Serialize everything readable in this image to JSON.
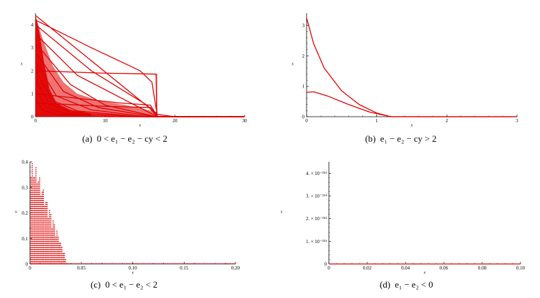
{
  "captions": [
    {
      "label": "(a)",
      "condition": "0 < e₁ − e₂ − cy < 2"
    },
    {
      "label": "(b)",
      "condition": "e₁ − e₂ − cy > 2"
    },
    {
      "label": "(c)",
      "condition": "0 < e₁ − e₂ < 2"
    },
    {
      "label": "(d)",
      "condition": "e₁ − e₂ < 0"
    }
  ],
  "chart_data": [
    {
      "type": "line",
      "panel": "a",
      "xlabel": "x",
      "ylabel": "x",
      "xlim": [
        0,
        30
      ],
      "ylim": [
        0,
        4.5
      ],
      "xticks": [
        0,
        10,
        20,
        30
      ],
      "yticks": [
        0,
        1,
        2,
        3,
        4
      ],
      "color": "#e00000",
      "series": [
        {
          "x": [
            0,
            17.5,
            20,
            30
          ],
          "y": [
            4.4,
            0.1,
            0,
            0
          ]
        },
        {
          "x": [
            0,
            9,
            17.3,
            17.4,
            20,
            30
          ],
          "y": [
            2.0,
            1.9,
            1.85,
            0,
            0,
            0
          ]
        },
        {
          "x": [
            0,
            8,
            15,
            16.7,
            17.5,
            30
          ],
          "y": [
            4.2,
            3.0,
            2.0,
            1.5,
            0,
            0
          ]
        },
        {
          "x": [
            0,
            8,
            16,
            17.5,
            30
          ],
          "y": [
            4.0,
            2.0,
            0.5,
            0,
            0
          ]
        },
        {
          "x": [
            0,
            6,
            13,
            17.5,
            30
          ],
          "y": [
            3.6,
            1.8,
            0.7,
            0,
            0
          ]
        },
        {
          "x": [
            0,
            5,
            10,
            17.3,
            30
          ],
          "y": [
            3.2,
            1.4,
            0.5,
            0,
            0
          ]
        },
        {
          "x": [
            0,
            4,
            9,
            17,
            30
          ],
          "y": [
            2.8,
            1.1,
            0.4,
            0,
            0
          ]
        },
        {
          "x": [
            0,
            3,
            8,
            16,
            30
          ],
          "y": [
            2.4,
            0.9,
            0.3,
            0,
            0
          ]
        },
        {
          "x": [
            0,
            2.5,
            6,
            15,
            30
          ],
          "y": [
            2.0,
            0.7,
            0.25,
            0,
            0
          ]
        },
        {
          "x": [
            0,
            2,
            5,
            14,
            30
          ],
          "y": [
            1.6,
            0.55,
            0.2,
            0,
            0
          ]
        },
        {
          "x": [
            0,
            1.5,
            4,
            12,
            30
          ],
          "y": [
            1.2,
            0.4,
            0.15,
            0,
            0
          ]
        },
        {
          "x": [
            0,
            1,
            3,
            10,
            30
          ],
          "y": [
            0.8,
            0.3,
            0.1,
            0,
            0
          ]
        },
        {
          "x": [
            0,
            12,
            16.5,
            17.5,
            30
          ],
          "y": [
            1.0,
            0.6,
            0.5,
            0,
            0
          ]
        },
        {
          "x": [
            0,
            10,
            16.5,
            17.5,
            30
          ],
          "y": [
            0.6,
            0.45,
            0.4,
            0,
            0
          ]
        }
      ]
    },
    {
      "type": "line",
      "panel": "b",
      "xlabel": "x",
      "ylabel": "x",
      "xlim": [
        0,
        3
      ],
      "ylim": [
        0,
        3.4
      ],
      "xticks": [
        0,
        1,
        2,
        3
      ],
      "yticks": [
        0,
        1,
        2,
        3
      ],
      "color": "#e00000",
      "series": [
        {
          "x": [
            0,
            0.1,
            0.25,
            0.5,
            0.75,
            1.0,
            1.2,
            3.0
          ],
          "y": [
            3.25,
            2.4,
            1.6,
            0.85,
            0.4,
            0.12,
            0,
            0
          ]
        },
        {
          "x": [
            0,
            0.1,
            0.3,
            0.6,
            0.9,
            1.2,
            3.0
          ],
          "y": [
            0.8,
            0.82,
            0.68,
            0.4,
            0.15,
            0,
            0
          ]
        }
      ]
    },
    {
      "type": "scatter",
      "panel": "c",
      "xlabel": "x",
      "ylabel": "x",
      "xlim": [
        0,
        0.2
      ],
      "ylim": [
        0,
        0.4
      ],
      "xticks": [
        0,
        0.05,
        0.1,
        0.15,
        0.2
      ],
      "ytick_values": [
        0,
        0.1,
        0.2,
        0.3,
        0.4
      ],
      "ytick_labels": [
        "0",
        "0.1",
        "0.2",
        "0.3",
        "0.4"
      ],
      "xtick_labels": [
        "0",
        "0.05",
        "0.10",
        "0.15",
        "0.20"
      ],
      "color": "#e00000",
      "envelope": {
        "x": [
          0,
          0.006,
          0.012,
          0.02,
          0.03,
          0.036,
          0.2
        ],
        "y": [
          0.4,
          0.38,
          0.3,
          0.2,
          0.08,
          0,
          0
        ]
      }
    },
    {
      "type": "line",
      "panel": "d",
      "xlabel": "x",
      "ylabel": "x",
      "xlim": [
        0,
        0.1
      ],
      "ylim": [
        0,
        4.5
      ],
      "xticks": [
        0,
        0.02,
        0.04,
        0.06,
        0.08,
        0.1
      ],
      "xtick_labels": [
        "0",
        "0.02",
        "0.04",
        "0.06",
        "0.08",
        "0.10"
      ],
      "ytick_values": [
        0,
        1,
        2,
        3,
        4
      ],
      "ytick_labels": [
        "0",
        "1. × 10⁻³¹⁴",
        "2. × 10⁻³¹⁴",
        "3. × 10⁻³¹⁴",
        "4. × 10⁻³¹⁴"
      ],
      "color": "#e00000",
      "series": [
        {
          "x": [
            0,
            0.1
          ],
          "y": [
            0,
            0
          ]
        }
      ]
    }
  ]
}
